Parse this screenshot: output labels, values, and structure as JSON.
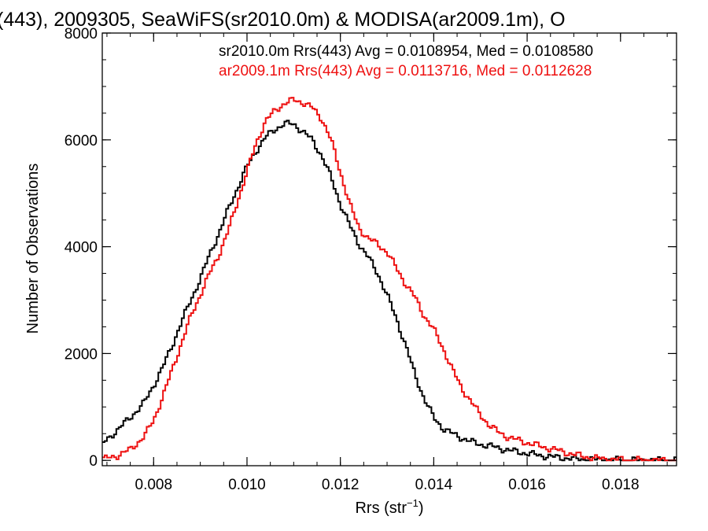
{
  "chart_data": {
    "type": "line",
    "title": "(443), 2009305, SeaWiFS(sr2010.0m) & MODISA(ar2009.1m), O",
    "xlabel_main": "Rrs (str",
    "xlabel_sup": "−1",
    "xlabel_close": ")",
    "ylabel": "Number of Observations",
    "xlim": [
      0.0069,
      0.0192
    ],
    "ylim": [
      -100,
      8000
    ],
    "xticks": [
      {
        "value": 0.008,
        "label": "0.008"
      },
      {
        "value": 0.01,
        "label": "0.010"
      },
      {
        "value": 0.012,
        "label": "0.012"
      },
      {
        "value": 0.014,
        "label": "0.014"
      },
      {
        "value": 0.016,
        "label": "0.016"
      },
      {
        "value": 0.018,
        "label": "0.018"
      }
    ],
    "yticks": [
      {
        "value": 0,
        "label": "0"
      },
      {
        "value": 2000,
        "label": "2000"
      },
      {
        "value": 4000,
        "label": "4000"
      },
      {
        "value": 6000,
        "label": "6000"
      },
      {
        "value": 8000,
        "label": "8000"
      }
    ],
    "x": [
      0.0069,
      0.0072,
      0.0075,
      0.0078,
      0.008,
      0.0082,
      0.0084,
      0.0086,
      0.0088,
      0.009,
      0.0092,
      0.0094,
      0.0096,
      0.0098,
      0.01,
      0.0102,
      0.0104,
      0.0106,
      0.0108,
      0.011,
      0.0112,
      0.0114,
      0.0116,
      0.0118,
      0.012,
      0.0122,
      0.0124,
      0.0126,
      0.0128,
      0.013,
      0.0132,
      0.0134,
      0.0136,
      0.0138,
      0.014,
      0.0142,
      0.0144,
      0.0146,
      0.0148,
      0.015,
      0.0152,
      0.0154,
      0.0156,
      0.0158,
      0.016,
      0.0163,
      0.0166,
      0.017,
      0.0174,
      0.0178,
      0.0182,
      0.0186,
      0.0192
    ],
    "series": [
      {
        "name": "sr2010.0m Rrs(443) Avg = 0.0108954, Med = 0.0108580",
        "color": "#000000",
        "values": [
          300,
          550,
          800,
          1080,
          1400,
          1750,
          2150,
          2600,
          3000,
          3400,
          3850,
          4250,
          4700,
          5100,
          5500,
          5800,
          6050,
          6200,
          6300,
          6300,
          6150,
          6000,
          5700,
          5300,
          4800,
          4400,
          4050,
          3800,
          3500,
          3100,
          2650,
          2150,
          1600,
          1150,
          800,
          600,
          500,
          420,
          350,
          300,
          270,
          230,
          190,
          160,
          130,
          90,
          60,
          30,
          15,
          8,
          4,
          2,
          0
        ]
      },
      {
        "name": "ar2009.1m Rrs(443) Avg = 0.0113716, Med = 0.0112628",
        "color": "#ee1111",
        "values": [
          20,
          80,
          200,
          450,
          750,
          1200,
          1700,
          2200,
          2700,
          3100,
          3500,
          3850,
          4300,
          4850,
          5400,
          5950,
          6350,
          6550,
          6680,
          6750,
          6700,
          6600,
          6400,
          6000,
          5400,
          4800,
          4350,
          4150,
          4050,
          3900,
          3600,
          3300,
          3050,
          2700,
          2450,
          2100,
          1700,
          1350,
          1100,
          850,
          650,
          520,
          430,
          380,
          330,
          260,
          200,
          110,
          45,
          18,
          6,
          2,
          0
        ]
      }
    ]
  }
}
